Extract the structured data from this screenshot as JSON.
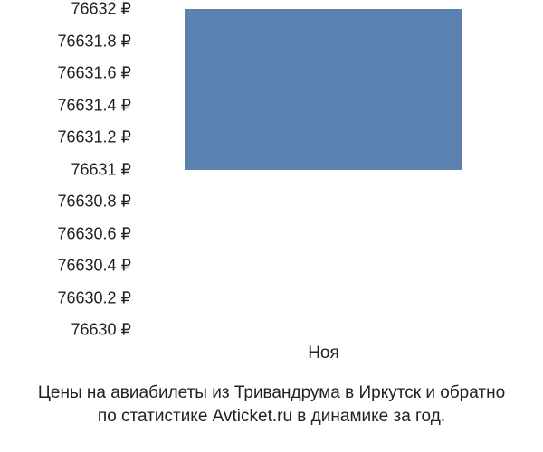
{
  "chart": {
    "type": "bar",
    "background_color": "#ffffff",
    "text_color": "#222222",
    "font_size": 18,
    "y_ticks": [
      {
        "label": "76632 ₽",
        "value": 76632
      },
      {
        "label": "76631.8 ₽",
        "value": 76631.8
      },
      {
        "label": "76631.6 ₽",
        "value": 76631.6
      },
      {
        "label": "76631.4 ₽",
        "value": 76631.4
      },
      {
        "label": "76631.2 ₽",
        "value": 76631.2
      },
      {
        "label": "76631 ₽",
        "value": 76631
      },
      {
        "label": "76630.8 ₽",
        "value": 76630.8
      },
      {
        "label": "76630.6 ₽",
        "value": 76630.6
      },
      {
        "label": "76630.4 ₽",
        "value": 76630.4
      },
      {
        "label": "76630.2 ₽",
        "value": 76630.2
      },
      {
        "label": "76630 ₽",
        "value": 76630
      }
    ],
    "y_min": 76630,
    "y_max": 76632,
    "y_tick_spacing": 35.5,
    "x_ticks": [
      {
        "label": "Ноя",
        "position": 0.5
      }
    ],
    "bars": [
      {
        "category": "Ноя",
        "value_low": 76631,
        "value_high": 76632,
        "color": "#5a81b0",
        "left_pct": 12,
        "width_pct": 76
      }
    ],
    "caption_line1": "Цены на авиабилеты из Тривандрума в Иркутск и обратно",
    "caption_line2": "по статистике Avticket.ru в динамике за год."
  }
}
